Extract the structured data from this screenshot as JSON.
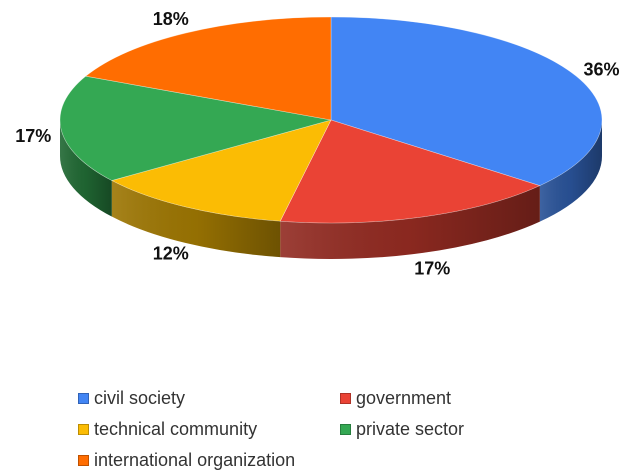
{
  "chart_data": {
    "type": "pie",
    "categories": [
      "civil society",
      "government",
      "technical community",
      "private sector",
      "international organization"
    ],
    "values": [
      36,
      17,
      12,
      17,
      18
    ],
    "data_labels": [
      "36%",
      "17%",
      "12%",
      "17%",
      "18%"
    ],
    "colors": [
      "#4285f4",
      "#ea4335",
      "#fbbc04",
      "#34a853",
      "#ff6d01"
    ],
    "style": "3d",
    "legend_position": "bottom"
  }
}
